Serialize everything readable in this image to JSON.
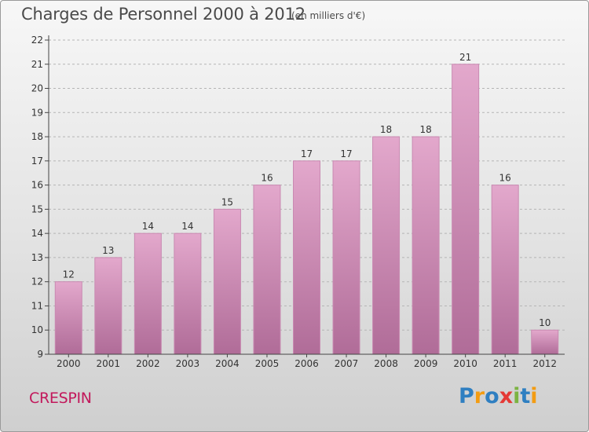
{
  "title": "Charges de Personnel 2000 à 2012",
  "subtitle": "(en milliers d'€)",
  "commune": "CRESPIN",
  "logo": {
    "letters": [
      "P",
      "r",
      "o",
      "x",
      "i",
      "t",
      "i"
    ],
    "colors": [
      "#2f7fc1",
      "#f39c12",
      "#2f7fc1",
      "#e53935",
      "#7cb342",
      "#2f7fc1",
      "#f39c12"
    ]
  },
  "colors": {
    "bar_top": "#e3a8cc",
    "bar_bottom": "#b06c98",
    "bar_edge": "#c98ab2",
    "axis": "#444444",
    "grid": "#b5b5b5"
  },
  "chart_data": {
    "type": "bar",
    "title": "Charges de Personnel 2000 à 2012",
    "subtitle": "(en milliers d'€)",
    "categories": [
      "2000",
      "2001",
      "2002",
      "2003",
      "2004",
      "2005",
      "2006",
      "2007",
      "2008",
      "2009",
      "2010",
      "2011",
      "2012"
    ],
    "values": [
      12,
      13,
      14,
      14,
      15,
      16,
      17,
      17,
      18,
      18,
      21,
      16,
      10
    ],
    "ylim": [
      9,
      22
    ],
    "yticks": [
      9,
      10,
      11,
      12,
      13,
      14,
      15,
      16,
      17,
      18,
      19,
      20,
      21,
      22
    ],
    "grid": "horizontal dashed",
    "data_labels": true
  }
}
